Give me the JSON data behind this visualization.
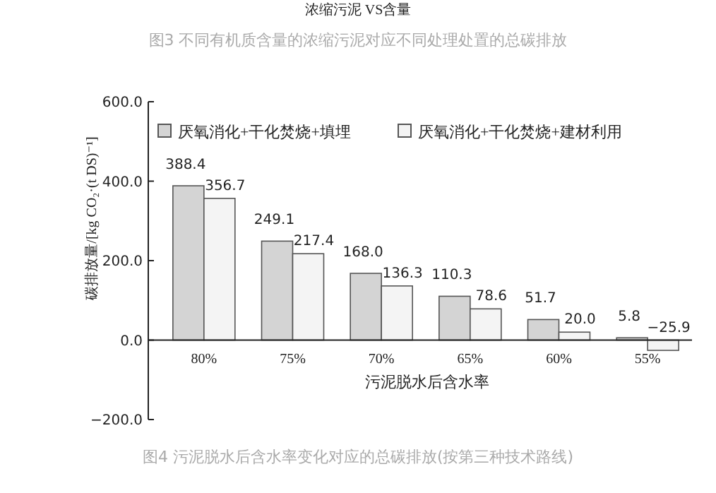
{
  "chart_data": {
    "type": "bar",
    "title": "图4 污泥脱水后含水率变化对应的总碳排放(按第三种技术路线)",
    "xlabel": "污泥脱水后含水率",
    "ylabel": "碳排放量/[kg CO₂·(t DS)⁻¹]",
    "annotations": [
      "浓缩污泥 VS含量",
      "图3 不同有机质含量的浓缩污泥对应不同处理处置的总碳排放"
    ],
    "categories": [
      "80%",
      "75%",
      "70%",
      "65%",
      "60%",
      "55%"
    ],
    "series": [
      {
        "name": "厌氧消化+干化焚烧+填埋",
        "color": "#d4d4d4",
        "values": [
          388.4,
          249.1,
          168.0,
          110.3,
          51.7,
          5.8
        ],
        "value_labels": [
          "388.4",
          "249.1",
          "168.0",
          "110.3",
          "51.7",
          "5.8"
        ]
      },
      {
        "name": "厌氧消化+干化焚烧+建材利用",
        "color": "#f4f4f4",
        "values": [
          356.7,
          217.4,
          136.3,
          78.6,
          20.0,
          -25.9
        ],
        "value_labels": [
          "356.7",
          "217.4",
          "136.3",
          "78.6",
          "20.0",
          "−25.9"
        ]
      }
    ],
    "ylim": [
      -200,
      600
    ],
    "yticks": [
      {
        "value": -200,
        "label": "−200.0"
      },
      {
        "value": 0,
        "label": "0.0"
      },
      {
        "value": 200,
        "label": "200.0"
      },
      {
        "value": 400,
        "label": "400.0"
      },
      {
        "value": 600,
        "label": "600.0"
      }
    ],
    "legend": "top"
  }
}
